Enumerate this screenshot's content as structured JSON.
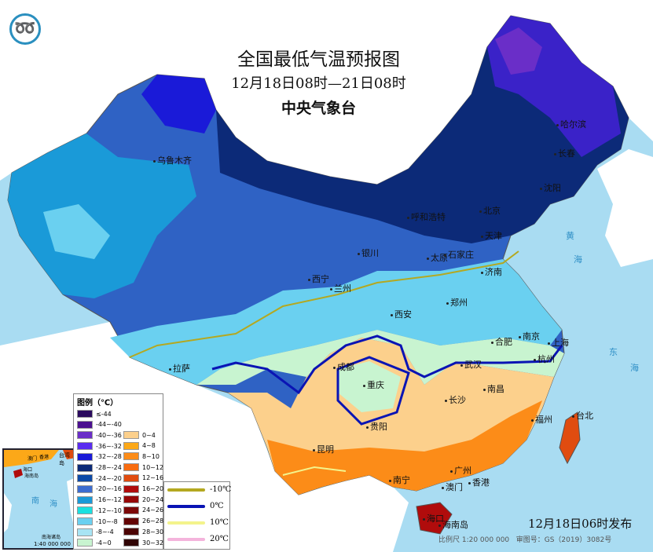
{
  "title": "全国最低气温预报图",
  "period": "12月18日08时—21日08时",
  "issuer": "中央气象台",
  "published": "12月18日06时发布",
  "scale": "比例尺 1:20 000 000",
  "map_number": "审图号：GS（2019）3082号",
  "cities": [
    "乌鲁木齐",
    "哈尔滨",
    "长春",
    "沈阳",
    "北京",
    "天津",
    "呼和浩特",
    "银川",
    "太原",
    "石家庄",
    "济南",
    "西宁",
    "兰州",
    "郑州",
    "西安",
    "合肥",
    "南京",
    "上海",
    "杭州",
    "武汉",
    "成都",
    "重庆",
    "南昌",
    "长沙",
    "贵阳",
    "福州",
    "台北",
    "昆明",
    "南宁",
    "广州",
    "香港",
    "澳门",
    "拉萨",
    "海口",
    "海南岛"
  ],
  "seas": [
    "黄",
    "海",
    "东",
    "海",
    "南",
    "海"
  ],
  "legend": {
    "title": "图例（℃）",
    "cold": [
      {
        "label": "≤-44",
        "color": "#2a0a5e"
      },
      {
        "label": "-44~-40",
        "color": "#4b1090"
      },
      {
        "label": "-40~-36",
        "color": "#6a2ec8"
      },
      {
        "label": "-36~-32",
        "color": "#5a2cf0"
      },
      {
        "label": "-32~-28",
        "color": "#1a1ad8"
      },
      {
        "label": "-28~-24",
        "color": "#0c2a78"
      },
      {
        "label": "-24~-20",
        "color": "#0c4aa8"
      },
      {
        "label": "-20~-16",
        "color": "#3c6cd0"
      },
      {
        "label": "-16~-12",
        "color": "#1a9ad8"
      },
      {
        "label": "-12~-10",
        "color": "#1ae0e0"
      },
      {
        "label": "-10~-8",
        "color": "#6ad0f0"
      },
      {
        "label": "-8~-4",
        "color": "#a8e4f4"
      },
      {
        "label": "-4~0",
        "color": "#c8f4d0"
      }
    ],
    "warm": [
      {
        "label": "0~4",
        "color": "#fcd08c"
      },
      {
        "label": "4~8",
        "color": "#fca818"
      },
      {
        "label": "8~10",
        "color": "#fc8c18"
      },
      {
        "label": "10~12",
        "color": "#f86c10"
      },
      {
        "label": "12~16",
        "color": "#e04c10"
      },
      {
        "label": "16~20",
        "color": "#b00c0c"
      },
      {
        "label": "20~24",
        "color": "#960808"
      },
      {
        "label": "24~26",
        "color": "#7c0808"
      },
      {
        "label": "26~28",
        "color": "#640404"
      },
      {
        "label": "28~30",
        "color": "#4c0404"
      },
      {
        "label": "30~32",
        "color": "#300404"
      }
    ],
    "isotherms": [
      {
        "label": "-10℃",
        "color": "#b4a820"
      },
      {
        "label": "0℃",
        "color": "#0a14b4"
      },
      {
        "label": "10℃",
        "color": "#f4f48c"
      },
      {
        "label": "20℃",
        "color": "#f4b4dc"
      }
    ]
  },
  "inset": {
    "labels": [
      "台湾岛",
      "澳门",
      "香港",
      "海口",
      "海南岛",
      "南",
      "海",
      "南海诸岛"
    ],
    "scale": "1:40 000 000"
  }
}
